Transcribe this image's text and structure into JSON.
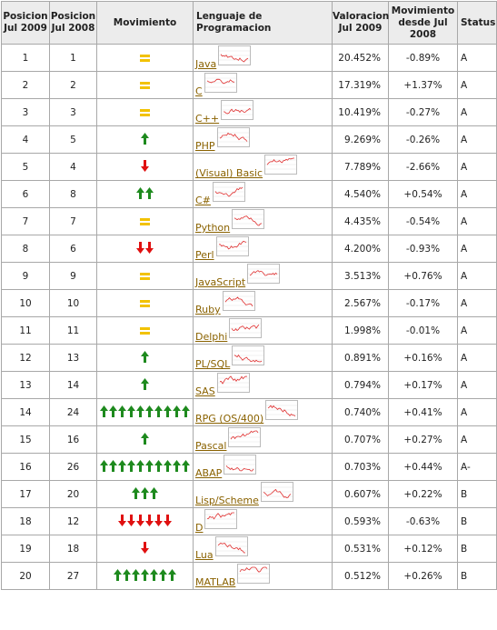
{
  "headers": {
    "pos2009": "Posicion Jul 2009",
    "pos2008": "Posicion Jul 2008",
    "movement": "Movimiento",
    "language": "Lenguaje de Programacion",
    "rating": "Valoracion Jul 2009",
    "delta": "Movimiento desde Jul 2008",
    "status": "Status"
  },
  "colors": {
    "up_arrow": "#1e8a1e",
    "down_arrow": "#e01010",
    "equal": "#f2c200",
    "link": "#8a6200",
    "sparkline": "#e03030"
  },
  "rows": [
    {
      "pos2009": "1",
      "pos2008": "1",
      "move": "equal",
      "count": 0,
      "language": "Java",
      "rating": "20.452%",
      "delta": "-0.89%",
      "status": "A"
    },
    {
      "pos2009": "2",
      "pos2008": "2",
      "move": "equal",
      "count": 0,
      "language": "C",
      "rating": "17.319%",
      "delta": "+1.37%",
      "status": "A"
    },
    {
      "pos2009": "3",
      "pos2008": "3",
      "move": "equal",
      "count": 0,
      "language": "C++",
      "rating": "10.419%",
      "delta": "-0.27%",
      "status": "A"
    },
    {
      "pos2009": "4",
      "pos2008": "5",
      "move": "up",
      "count": 1,
      "language": "PHP",
      "rating": "9.269%",
      "delta": "-0.26%",
      "status": "A"
    },
    {
      "pos2009": "5",
      "pos2008": "4",
      "move": "down",
      "count": 1,
      "language": "(Visual) Basic",
      "rating": "7.789%",
      "delta": "-2.66%",
      "status": "A"
    },
    {
      "pos2009": "6",
      "pos2008": "8",
      "move": "up",
      "count": 2,
      "language": "C#",
      "rating": "4.540%",
      "delta": "+0.54%",
      "status": "A"
    },
    {
      "pos2009": "7",
      "pos2008": "7",
      "move": "equal",
      "count": 0,
      "language": "Python",
      "rating": "4.435%",
      "delta": "-0.54%",
      "status": "A"
    },
    {
      "pos2009": "8",
      "pos2008": "6",
      "move": "down",
      "count": 2,
      "language": "Perl",
      "rating": "4.200%",
      "delta": "-0.93%",
      "status": "A"
    },
    {
      "pos2009": "9",
      "pos2008": "9",
      "move": "equal",
      "count": 0,
      "language": "JavaScript",
      "rating": "3.513%",
      "delta": "+0.76%",
      "status": "A"
    },
    {
      "pos2009": "10",
      "pos2008": "10",
      "move": "equal",
      "count": 0,
      "language": "Ruby",
      "rating": "2.567%",
      "delta": "-0.17%",
      "status": "A"
    },
    {
      "pos2009": "11",
      "pos2008": "11",
      "move": "equal",
      "count": 0,
      "language": "Delphi",
      "rating": "1.998%",
      "delta": "-0.01%",
      "status": "A"
    },
    {
      "pos2009": "12",
      "pos2008": "13",
      "move": "up",
      "count": 1,
      "language": "PL/SQL",
      "rating": "0.891%",
      "delta": "+0.16%",
      "status": "A"
    },
    {
      "pos2009": "13",
      "pos2008": "14",
      "move": "up",
      "count": 1,
      "language": "SAS",
      "rating": "0.794%",
      "delta": "+0.17%",
      "status": "A"
    },
    {
      "pos2009": "14",
      "pos2008": "24",
      "move": "up",
      "count": 10,
      "language": "RPG (OS/400)",
      "rating": "0.740%",
      "delta": "+0.41%",
      "status": "A"
    },
    {
      "pos2009": "15",
      "pos2008": "16",
      "move": "up",
      "count": 1,
      "language": "Pascal",
      "rating": "0.707%",
      "delta": "+0.27%",
      "status": "A"
    },
    {
      "pos2009": "16",
      "pos2008": "26",
      "move": "up",
      "count": 10,
      "language": "ABAP",
      "rating": "0.703%",
      "delta": "+0.44%",
      "status": "A-"
    },
    {
      "pos2009": "17",
      "pos2008": "20",
      "move": "up",
      "count": 3,
      "language": "Lisp/Scheme",
      "rating": "0.607%",
      "delta": "+0.22%",
      "status": "B"
    },
    {
      "pos2009": "18",
      "pos2008": "12",
      "move": "down",
      "count": 6,
      "language": "D",
      "rating": "0.593%",
      "delta": "-0.63%",
      "status": "B"
    },
    {
      "pos2009": "19",
      "pos2008": "18",
      "move": "down",
      "count": 1,
      "language": "Lua",
      "rating": "0.531%",
      "delta": "+0.12%",
      "status": "B"
    },
    {
      "pos2009": "20",
      "pos2008": "27",
      "move": "up",
      "count": 7,
      "language": "MATLAB",
      "rating": "0.512%",
      "delta": "+0.26%",
      "status": "B"
    }
  ]
}
